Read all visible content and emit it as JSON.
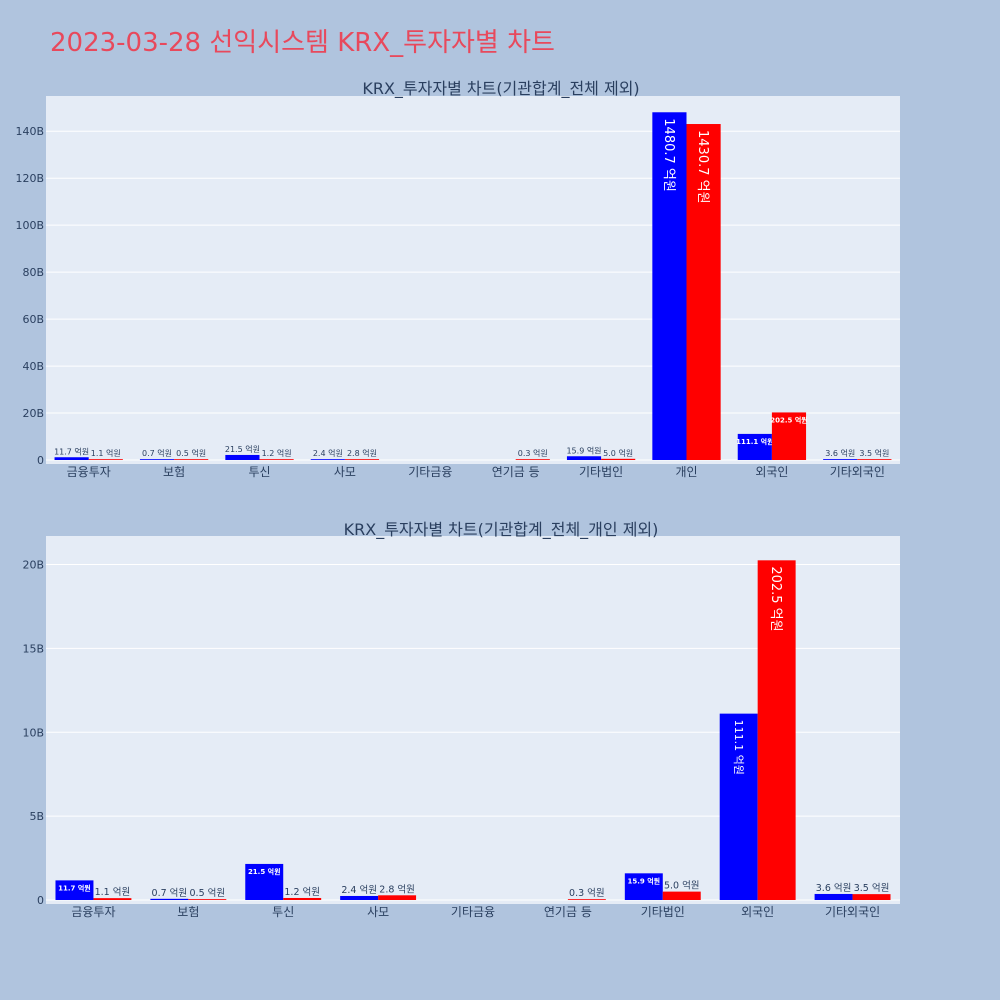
{
  "page_title": "2023-03-28 선익시스템 KRX_투자자별 차트",
  "colors": {
    "series_a": "#0000ff",
    "series_b": "#ff0000",
    "plot_bg": "#e5ecf6",
    "page_bg": "#b0c4de",
    "title": "#e8495c"
  },
  "chart_data": [
    {
      "type": "bar",
      "title": "KRX_투자자별 차트(기관합계_전체 제외)",
      "categories": [
        "금융투자",
        "보험",
        "투신",
        "사모",
        "기타금융",
        "연기금 등",
        "기타법인",
        "개인",
        "외국인",
        "기타외국인"
      ],
      "series": [
        {
          "values": [
            1.17,
            0.07,
            2.15,
            0.24,
            null,
            null,
            1.59,
            148.07,
            11.11,
            0.36
          ],
          "labels": [
            "11.7 억원",
            "0.7 억원",
            "21.5 억원",
            "2.4 억원",
            "",
            "",
            "15.9 억원",
            "1480.7 억원",
            "111.1 억원",
            "3.6 억원"
          ]
        },
        {
          "values": [
            0.11,
            0.05,
            0.12,
            0.28,
            null,
            0.03,
            0.5,
            143.07,
            20.25,
            0.35
          ],
          "labels": [
            "1.1 억원",
            "0.5 억원",
            "1.2 억원",
            "2.8 억원",
            "",
            "0.3 억원",
            "5.0 억원",
            "1430.7 억원",
            "202.5 억원",
            "3.5 억원"
          ]
        }
      ],
      "yticks": [
        "0",
        "20B",
        "40B",
        "60B",
        "80B",
        "100B",
        "120B",
        "140B"
      ],
      "ytick_values": [
        0,
        20,
        40,
        60,
        80,
        100,
        120,
        140
      ],
      "ylim": [
        0,
        155
      ],
      "xlabel": "",
      "ylabel": "",
      "grid": true
    },
    {
      "type": "bar",
      "title": "KRX_투자자별 차트(기관합계_전체_개인 제외)",
      "categories": [
        "금융투자",
        "보험",
        "투신",
        "사모",
        "기타금융",
        "연기금 등",
        "기타법인",
        "외국인",
        "기타외국인"
      ],
      "series": [
        {
          "values": [
            1.17,
            0.07,
            2.15,
            0.24,
            null,
            null,
            1.59,
            11.11,
            0.36
          ],
          "labels": [
            "11.7 억원",
            "0.7 억원",
            "21.5 억원",
            "2.4 억원",
            "",
            "",
            "15.9 억원",
            "111.1 억원",
            "3.6 억원"
          ]
        },
        {
          "values": [
            0.11,
            0.05,
            0.12,
            0.28,
            null,
            0.03,
            0.5,
            20.25,
            0.35
          ],
          "labels": [
            "1.1 억원",
            "0.5 억원",
            "1.2 억원",
            "2.8 억원",
            "",
            "0.3 억원",
            "5.0 억원",
            "202.5 억원",
            "3.5 억원"
          ]
        }
      ],
      "yticks": [
        "0",
        "5B",
        "10B",
        "15B",
        "20B"
      ],
      "ytick_values": [
        0,
        5,
        10,
        15,
        20
      ],
      "ylim": [
        0,
        21.7
      ],
      "xlabel": "",
      "ylabel": "",
      "grid": true
    }
  ]
}
